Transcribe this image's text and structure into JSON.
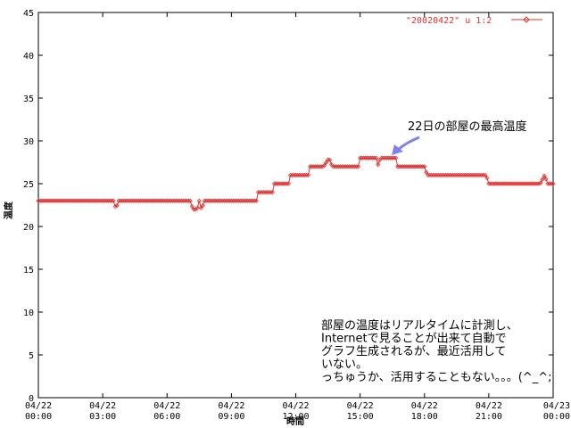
{
  "chart_data": {
    "type": "line",
    "title": "",
    "xlabel": "時間",
    "ylabel": "温度",
    "ylim": [
      0,
      45
    ],
    "yticks": [
      "0",
      "5",
      "10",
      "15",
      "20",
      "25",
      "30",
      "35",
      "40",
      "45"
    ],
    "xlim_hours": [
      0,
      24
    ],
    "xticks": [
      {
        "date": "04/22",
        "time": "00:00"
      },
      {
        "date": "04/22",
        "time": "03:00"
      },
      {
        "date": "04/22",
        "time": "06:00"
      },
      {
        "date": "04/22",
        "time": "09:00"
      },
      {
        "date": "04/22",
        "time": "12:00"
      },
      {
        "date": "04/22",
        "time": "15:00"
      },
      {
        "date": "04/22",
        "time": "18:00"
      },
      {
        "date": "04/22",
        "time": "21:00"
      },
      {
        "date": "04/23",
        "time": "00:00"
      }
    ],
    "grid": false,
    "legend_position": "top-right",
    "series": [
      {
        "name": "\"20020422\" u 1:2",
        "color": "#e03030",
        "step_points": [
          [
            0,
            23
          ],
          [
            3.55,
            23
          ],
          [
            3.6,
            22
          ],
          [
            3.75,
            23
          ],
          [
            7.1,
            23
          ],
          [
            7.2,
            22
          ],
          [
            7.4,
            22
          ],
          [
            7.5,
            23
          ],
          [
            7.6,
            22
          ],
          [
            7.75,
            23
          ],
          [
            10.2,
            23
          ],
          [
            10.25,
            24
          ],
          [
            10.95,
            24
          ],
          [
            11.0,
            25
          ],
          [
            11.7,
            25
          ],
          [
            11.75,
            26
          ],
          [
            12.6,
            26
          ],
          [
            12.65,
            27
          ],
          [
            13.3,
            27
          ],
          [
            13.55,
            28
          ],
          [
            13.7,
            27
          ],
          [
            14.95,
            27
          ],
          [
            15.0,
            28
          ],
          [
            15.75,
            28
          ],
          [
            15.8,
            27
          ],
          [
            15.95,
            28
          ],
          [
            16.7,
            28
          ],
          [
            16.75,
            27
          ],
          [
            18.05,
            27
          ],
          [
            18.1,
            26
          ],
          [
            20.9,
            26
          ],
          [
            20.95,
            25
          ],
          [
            23.4,
            25
          ],
          [
            23.6,
            26
          ],
          [
            23.75,
            25
          ],
          [
            24,
            25
          ]
        ]
      }
    ],
    "annotations": {
      "peak_label": "22日の部屋の最高温度",
      "note_lines": [
        "部屋の温度はリアルタイムに計測し、",
        "Internetで見ることが出来て自動で",
        "グラフ生成されるが、最近活用して",
        "いない。",
        "っちゅうか、活用することもない。。。(^_^;"
      ]
    }
  }
}
